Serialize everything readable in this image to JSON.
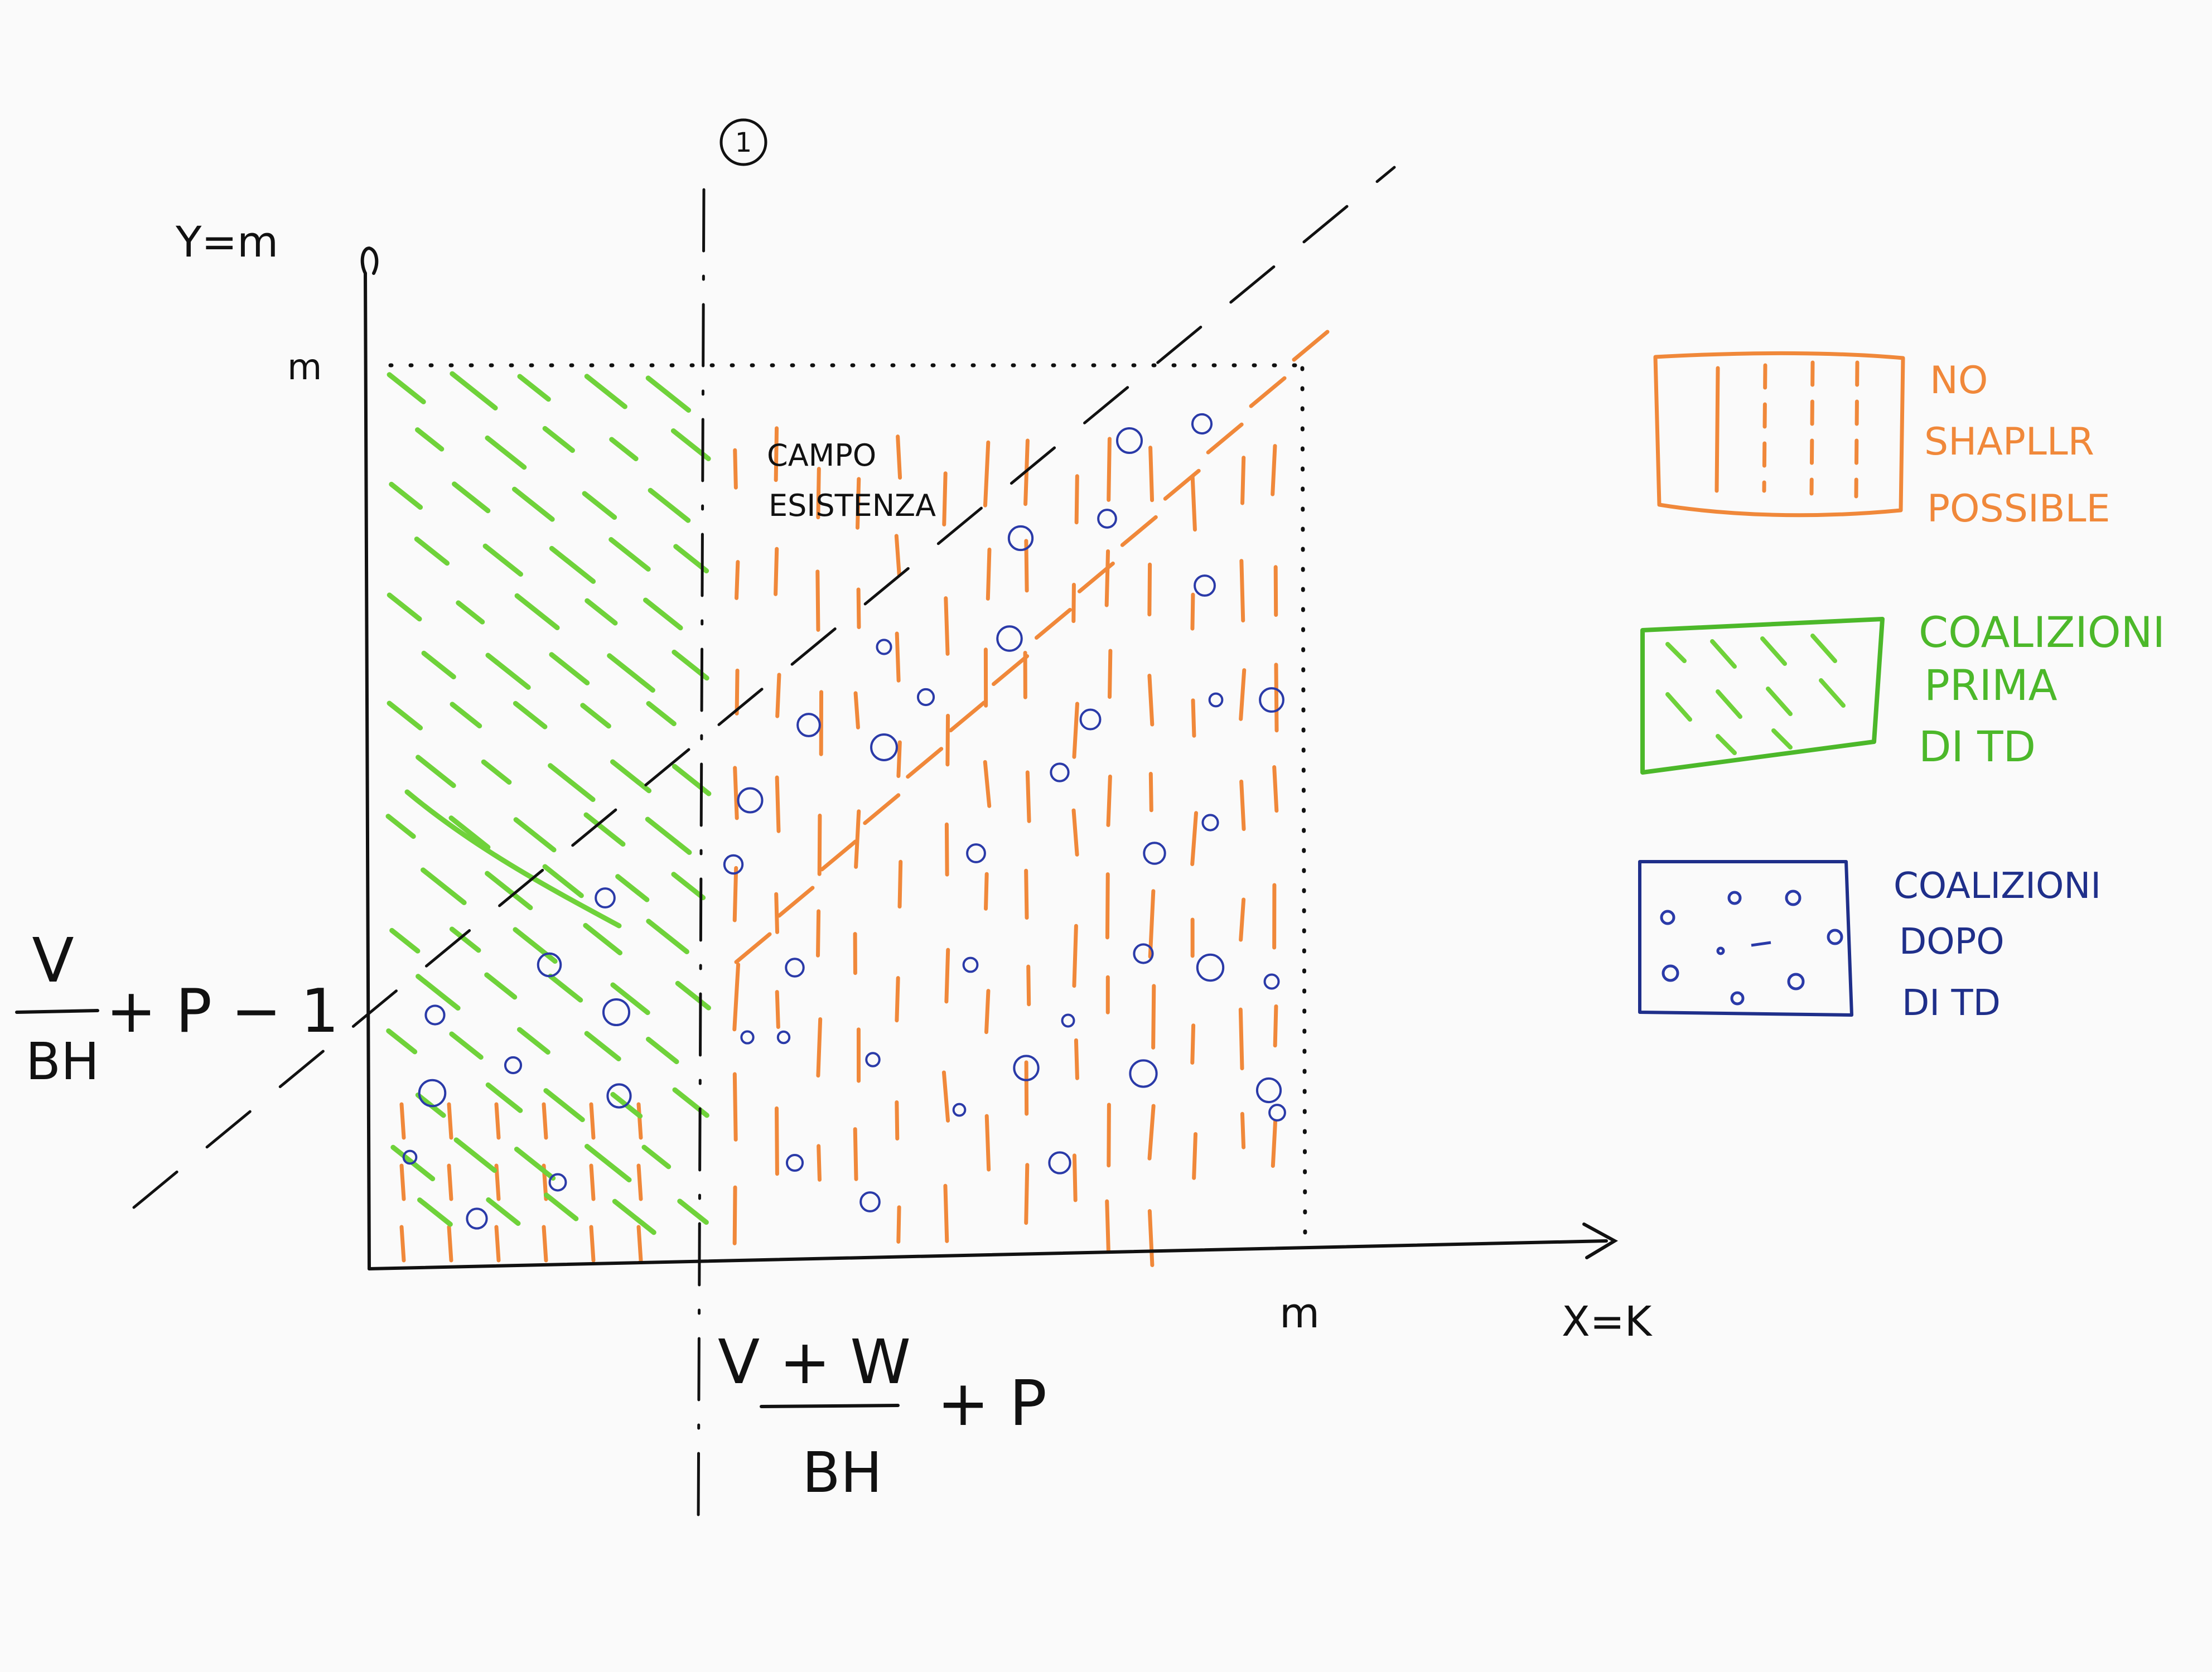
{
  "labels": {
    "circle_number": "1",
    "y_axis": "Y=m",
    "y_max_tick": "m",
    "x_max_tick": "m",
    "x_axis": "X=K",
    "campo_line1": "CAMPO",
    "campo_line2": "ESISTENZA",
    "y_intercept_num": "V",
    "y_intercept_den": "BH",
    "y_intercept_rest": "+ P − 1",
    "x_threshold_num": "V + W",
    "x_threshold_den": "BH",
    "x_threshold_rest": "+ P"
  },
  "legend": {
    "items": [
      {
        "lines": [
          "NO",
          "SHAPLLR",
          "POSSIBLE"
        ],
        "color": "#f0883a",
        "pattern": "vertical-dashes"
      },
      {
        "lines": [
          "COALIZIONI",
          "PRIMA",
          "DI TD"
        ],
        "color": "#4cb82a",
        "pattern": "diagonal-dashes"
      },
      {
        "lines": [
          "COALIZIONI",
          "DOPO",
          "DI TD"
        ],
        "color": "#1f2f8a",
        "pattern": "circles"
      }
    ]
  },
  "colors": {
    "ink": "#111111",
    "orange": "#f0883a",
    "green": "#4cb82a",
    "blue": "#1f2f8a"
  }
}
